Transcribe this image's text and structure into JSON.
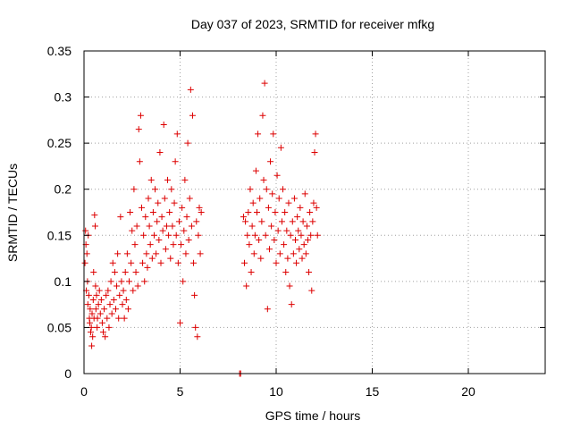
{
  "chart_data": {
    "type": "scatter",
    "title": "Day 037 of 2023, SRMTID for receiver mfkg",
    "xlabel": "GPS time / hours",
    "ylabel": "SRMTID / TECUs",
    "xlim": [
      0,
      24
    ],
    "ylim": [
      0,
      0.35
    ],
    "xticks": [
      0,
      5,
      10,
      15,
      20
    ],
    "yticks": [
      0,
      0.05,
      0.1,
      0.15,
      0.2,
      0.25,
      0.3,
      0.35
    ],
    "xtick_labels": [
      "0",
      "5",
      "10",
      "15",
      "20"
    ],
    "ytick_labels": [
      "0",
      "0.05",
      "0.1",
      "0.15",
      "0.2",
      "0.25",
      "0.3",
      "0.35"
    ],
    "grid": true,
    "legend": "none",
    "marker": "plus",
    "series": [
      {
        "color": "#dd0000",
        "points": [
          [
            0.05,
            0.12
          ],
          [
            0.08,
            0.155
          ],
          [
            0.1,
            0.14
          ],
          [
            0.12,
            0.09
          ],
          [
            0.15,
            0.13
          ],
          [
            0.18,
            0.1
          ],
          [
            0.2,
            0.075
          ],
          [
            0.22,
            0.15
          ],
          [
            0.25,
            0.085
          ],
          [
            0.28,
            0.06
          ],
          [
            0.3,
            0.055
          ],
          [
            0.32,
            0.07
          ],
          [
            0.35,
            0.045
          ],
          [
            0.38,
            0.05
          ],
          [
            0.4,
            0.03
          ],
          [
            0.42,
            0.065
          ],
          [
            0.45,
            0.04
          ],
          [
            0.48,
            0.08
          ],
          [
            0.5,
            0.11
          ],
          [
            0.52,
            0.06
          ],
          [
            0.55,
            0.172
          ],
          [
            0.58,
            0.16
          ],
          [
            0.6,
            0.095
          ],
          [
            0.62,
            0.07
          ],
          [
            0.65,
            0.085
          ],
          [
            0.68,
            0.05
          ],
          [
            0.7,
            0.06
          ],
          [
            0.75,
            0.075
          ],
          [
            0.8,
            0.09
          ],
          [
            0.85,
            0.065
          ],
          [
            0.9,
            0.08
          ],
          [
            0.95,
            0.055
          ],
          [
            1.0,
            0.045
          ],
          [
            1.05,
            0.07
          ],
          [
            1.1,
            0.04
          ],
          [
            1.15,
            0.085
          ],
          [
            1.2,
            0.06
          ],
          [
            1.25,
            0.09
          ],
          [
            1.3,
            0.05
          ],
          [
            1.35,
            0.075
          ],
          [
            1.4,
            0.1
          ],
          [
            1.45,
            0.065
          ],
          [
            1.5,
            0.12
          ],
          [
            1.55,
            0.08
          ],
          [
            1.6,
            0.11
          ],
          [
            1.65,
            0.07
          ],
          [
            1.7,
            0.095
          ],
          [
            1.75,
            0.13
          ],
          [
            1.8,
            0.06
          ],
          [
            1.85,
            0.085
          ],
          [
            1.9,
            0.17
          ],
          [
            1.95,
            0.1
          ],
          [
            2.0,
            0.075
          ],
          [
            2.05,
            0.09
          ],
          [
            2.1,
            0.06
          ],
          [
            2.15,
            0.11
          ],
          [
            2.2,
            0.08
          ],
          [
            2.25,
            0.13
          ],
          [
            2.3,
            0.07
          ],
          [
            2.35,
            0.1
          ],
          [
            2.4,
            0.175
          ],
          [
            2.45,
            0.12
          ],
          [
            2.5,
            0.155
          ],
          [
            2.55,
            0.09
          ],
          [
            2.6,
            0.2
          ],
          [
            2.65,
            0.14
          ],
          [
            2.7,
            0.11
          ],
          [
            2.75,
            0.16
          ],
          [
            2.8,
            0.095
          ],
          [
            2.85,
            0.265
          ],
          [
            2.9,
            0.23
          ],
          [
            2.95,
            0.28
          ],
          [
            3.0,
            0.18
          ],
          [
            3.05,
            0.12
          ],
          [
            3.1,
            0.15
          ],
          [
            3.15,
            0.1
          ],
          [
            3.2,
            0.17
          ],
          [
            3.25,
            0.13
          ],
          [
            3.3,
            0.115
          ],
          [
            3.35,
            0.19
          ],
          [
            3.4,
            0.16
          ],
          [
            3.45,
            0.14
          ],
          [
            3.5,
            0.21
          ],
          [
            3.55,
            0.125
          ],
          [
            3.6,
            0.175
          ],
          [
            3.65,
            0.15
          ],
          [
            3.7,
            0.2
          ],
          [
            3.75,
            0.13
          ],
          [
            3.8,
            0.165
          ],
          [
            3.85,
            0.185
          ],
          [
            3.9,
            0.145
          ],
          [
            3.95,
            0.24
          ],
          [
            4.0,
            0.12
          ],
          [
            4.05,
            0.17
          ],
          [
            4.1,
            0.155
          ],
          [
            4.15,
            0.27
          ],
          [
            4.2,
            0.19
          ],
          [
            4.25,
            0.135
          ],
          [
            4.3,
            0.16
          ],
          [
            4.35,
            0.21
          ],
          [
            4.4,
            0.15
          ],
          [
            4.45,
            0.175
          ],
          [
            4.5,
            0.125
          ],
          [
            4.55,
            0.2
          ],
          [
            4.6,
            0.16
          ],
          [
            4.65,
            0.14
          ],
          [
            4.7,
            0.185
          ],
          [
            4.75,
            0.23
          ],
          [
            4.8,
            0.15
          ],
          [
            4.85,
            0.26
          ],
          [
            4.9,
            0.12
          ],
          [
            4.95,
            0.165
          ],
          [
            5.0,
            0.055
          ],
          [
            5.05,
            0.14
          ],
          [
            5.1,
            0.18
          ],
          [
            5.15,
            0.1
          ],
          [
            5.2,
            0.155
          ],
          [
            5.25,
            0.21
          ],
          [
            5.3,
            0.13
          ],
          [
            5.35,
            0.17
          ],
          [
            5.4,
            0.25
          ],
          [
            5.45,
            0.145
          ],
          [
            5.5,
            0.19
          ],
          [
            5.55,
            0.308
          ],
          [
            5.6,
            0.16
          ],
          [
            5.65,
            0.28
          ],
          [
            5.7,
            0.12
          ],
          [
            5.75,
            0.085
          ],
          [
            5.8,
            0.05
          ],
          [
            5.85,
            0.165
          ],
          [
            5.9,
            0.04
          ],
          [
            5.95,
            0.15
          ],
          [
            6.0,
            0.18
          ],
          [
            6.05,
            0.13
          ],
          [
            6.1,
            0.175
          ],
          [
            8.1,
            0.0
          ],
          [
            8.15,
            0.0
          ],
          [
            8.3,
            0.17
          ],
          [
            8.35,
            0.12
          ],
          [
            8.4,
            0.165
          ],
          [
            8.45,
            0.095
          ],
          [
            8.5,
            0.15
          ],
          [
            8.55,
            0.175
          ],
          [
            8.6,
            0.14
          ],
          [
            8.65,
            0.2
          ],
          [
            8.7,
            0.11
          ],
          [
            8.75,
            0.16
          ],
          [
            8.8,
            0.185
          ],
          [
            8.85,
            0.13
          ],
          [
            8.9,
            0.15
          ],
          [
            8.95,
            0.22
          ],
          [
            9.0,
            0.175
          ],
          [
            9.05,
            0.26
          ],
          [
            9.1,
            0.145
          ],
          [
            9.15,
            0.19
          ],
          [
            9.2,
            0.125
          ],
          [
            9.25,
            0.165
          ],
          [
            9.3,
            0.28
          ],
          [
            9.35,
            0.21
          ],
          [
            9.4,
            0.315
          ],
          [
            9.45,
            0.15
          ],
          [
            9.5,
            0.2
          ],
          [
            9.55,
            0.07
          ],
          [
            9.6,
            0.18
          ],
          [
            9.65,
            0.135
          ],
          [
            9.7,
            0.23
          ],
          [
            9.75,
            0.16
          ],
          [
            9.8,
            0.195
          ],
          [
            9.85,
            0.26
          ],
          [
            9.9,
            0.145
          ],
          [
            9.95,
            0.175
          ],
          [
            10.0,
            0.12
          ],
          [
            10.05,
            0.215
          ],
          [
            10.1,
            0.155
          ],
          [
            10.15,
            0.19
          ],
          [
            10.2,
            0.13
          ],
          [
            10.25,
            0.245
          ],
          [
            10.3,
            0.165
          ],
          [
            10.35,
            0.2
          ],
          [
            10.4,
            0.14
          ],
          [
            10.45,
            0.175
          ],
          [
            10.5,
            0.11
          ],
          [
            10.55,
            0.155
          ],
          [
            10.6,
            0.125
          ],
          [
            10.65,
            0.185
          ],
          [
            10.7,
            0.095
          ],
          [
            10.75,
            0.15
          ],
          [
            10.8,
            0.075
          ],
          [
            10.85,
            0.165
          ],
          [
            10.9,
            0.13
          ],
          [
            10.95,
            0.19
          ],
          [
            11.0,
            0.145
          ],
          [
            11.05,
            0.12
          ],
          [
            11.1,
            0.17
          ],
          [
            11.15,
            0.155
          ],
          [
            11.2,
            0.135
          ],
          [
            11.25,
            0.18
          ],
          [
            11.3,
            0.15
          ],
          [
            11.35,
            0.125
          ],
          [
            11.4,
            0.165
          ],
          [
            11.45,
            0.14
          ],
          [
            11.5,
            0.195
          ],
          [
            11.55,
            0.13
          ],
          [
            11.6,
            0.16
          ],
          [
            11.65,
            0.145
          ],
          [
            11.7,
            0.11
          ],
          [
            11.75,
            0.175
          ],
          [
            11.8,
            0.15
          ],
          [
            11.85,
            0.09
          ],
          [
            11.9,
            0.165
          ],
          [
            11.95,
            0.185
          ],
          [
            12.0,
            0.24
          ],
          [
            12.05,
            0.26
          ],
          [
            12.1,
            0.18
          ],
          [
            12.15,
            0.15
          ]
        ]
      }
    ]
  }
}
